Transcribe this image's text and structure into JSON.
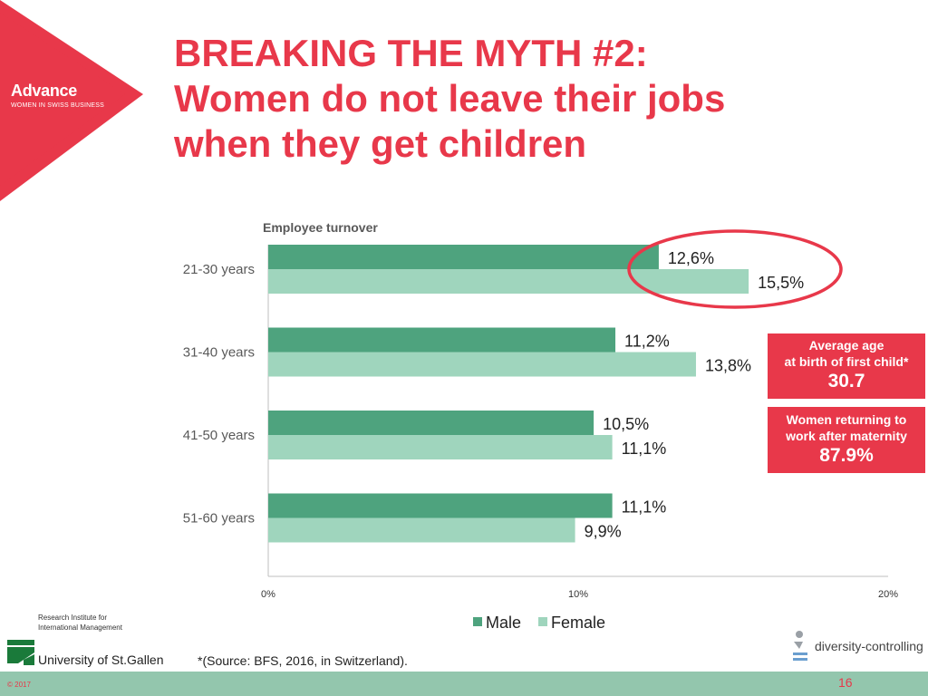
{
  "slide": {
    "title_lines": [
      "BREAKING THE MYTH #2:",
      "Women do not leave their jobs",
      "when they get children"
    ],
    "logo": {
      "name": "Advance",
      "subtitle": "WOMEN IN SWISS BUSINESS"
    },
    "source": "*(Source: BFS, 2016, in Switzerland).",
    "copyright": "© 2017",
    "page_number": "16",
    "university": {
      "line1": "Research Institute for",
      "line2": "International Management",
      "name": "University of St.Gallen"
    },
    "partner_logo": "diversity-controlling"
  },
  "info_boxes": [
    {
      "label_lines": [
        "Average age",
        "at birth of first child*"
      ],
      "value": "30.7"
    },
    {
      "label_lines": [
        "Women returning to",
        "work after maternity"
      ],
      "value": "87.9%"
    }
  ],
  "colors": {
    "accent": "#e8384a",
    "male": "#4ea37e",
    "female": "#9fd5bd",
    "footer": "#93c6ad"
  },
  "chart_data": {
    "type": "bar",
    "orientation": "horizontal",
    "subtitle": "Employee turnover",
    "categories": [
      "21-30 years",
      "31-40 years",
      "41-50 years",
      "51-60 years"
    ],
    "series": [
      {
        "name": "Male",
        "values": [
          12.6,
          11.2,
          10.5,
          11.1
        ],
        "labels": [
          "12,6%",
          "11,2%",
          "10,5%",
          "11,1%"
        ]
      },
      {
        "name": "Female",
        "values": [
          15.5,
          13.8,
          11.1,
          9.9
        ],
        "labels": [
          "15,5%",
          "13,8%",
          "11,1%",
          "9,9%"
        ]
      }
    ],
    "xlim": [
      0,
      20
    ],
    "xticks": [
      "0%",
      "10%",
      "20%"
    ],
    "legend_position": "bottom",
    "highlight": "21-30 years"
  }
}
